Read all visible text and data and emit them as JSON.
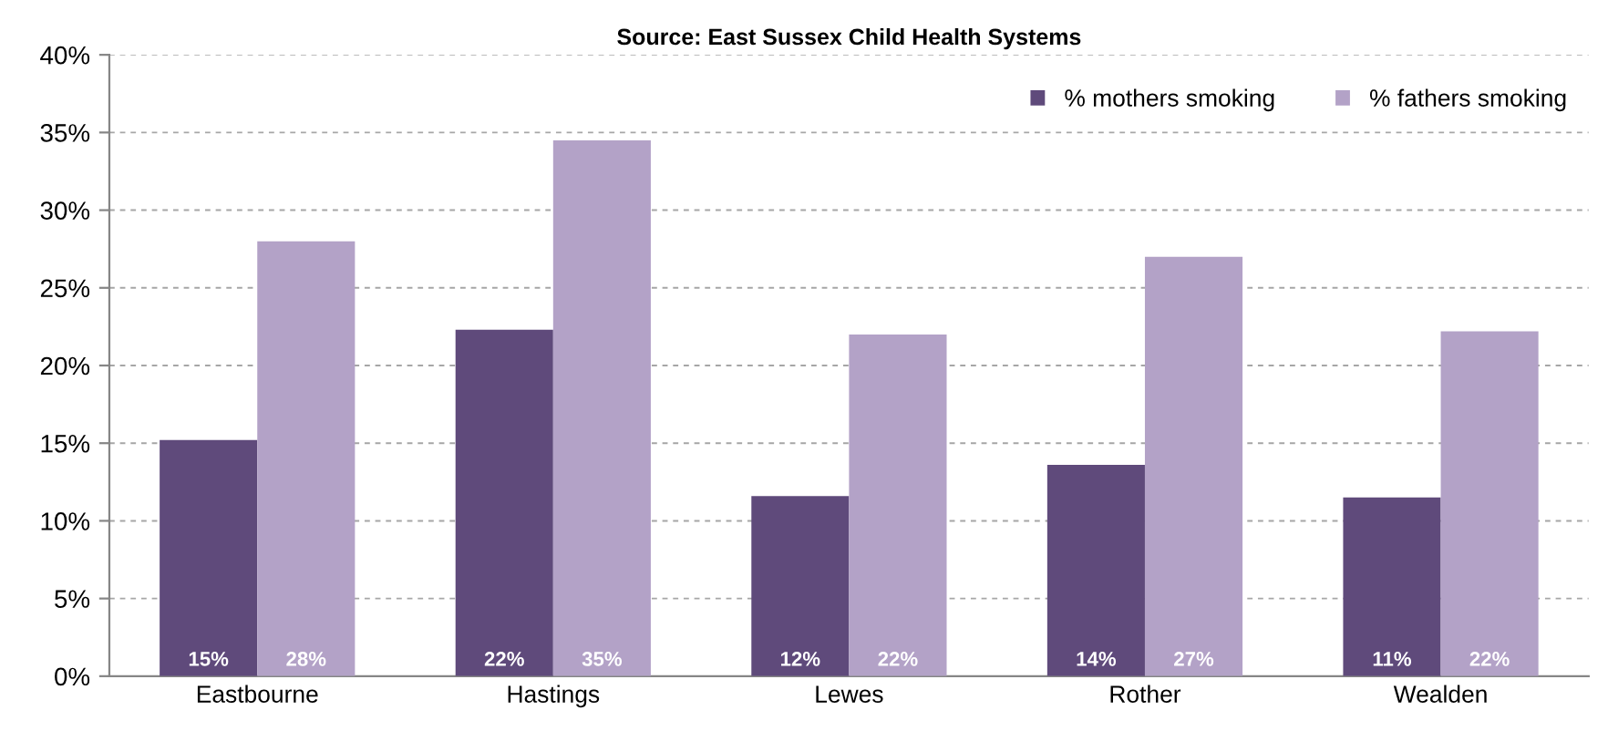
{
  "chart_data": {
    "type": "bar",
    "title": "Source: East Sussex Child Health Systems",
    "categories": [
      "Eastbourne",
      "Hastings",
      "Lewes",
      "Rother",
      "Wealden"
    ],
    "series": [
      {
        "name": "% mothers smoking",
        "color": "#5f4a7b",
        "values": [
          15.2,
          22.3,
          11.6,
          13.6,
          11.5
        ],
        "value_labels": [
          "15%",
          "22%",
          "12%",
          "14%",
          "11%"
        ]
      },
      {
        "name": "% fathers smoking",
        "color": "#b3a2c7",
        "values": [
          28.0,
          34.5,
          22.0,
          27.0,
          22.2
        ],
        "value_labels": [
          "28%",
          "35%",
          "22%",
          "27%",
          "22%"
        ]
      }
    ],
    "ylim": [
      0,
      40
    ],
    "yticks": [
      {
        "value": 0,
        "label": "0%"
      },
      {
        "value": 5,
        "label": "5%"
      },
      {
        "value": 10,
        "label": "10%"
      },
      {
        "value": 15,
        "label": "15%"
      },
      {
        "value": 20,
        "label": "20%"
      },
      {
        "value": 25,
        "label": "25%"
      },
      {
        "value": 30,
        "label": "30%"
      },
      {
        "value": 35,
        "label": "35%"
      },
      {
        "value": 40,
        "label": "40%"
      }
    ],
    "grid": "y",
    "legend": "top right"
  }
}
